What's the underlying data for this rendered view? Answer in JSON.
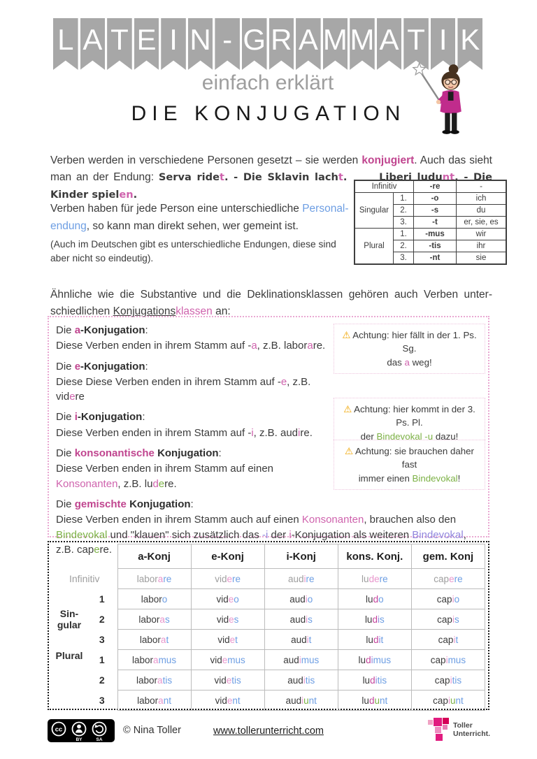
{
  "colors": {
    "pink_strong": "#c0458f",
    "pink": "#cf63ad",
    "pink_light": "#e896cc",
    "blue": "#6d9ee3",
    "green": "#7cb145",
    "violet": "#9186dd",
    "gray": "#9e9e9e",
    "banner_gray": "#a7a7a7",
    "warning_yellow": "#f0a500",
    "logo_magenta": "#e11c7f"
  },
  "header": {
    "banner_letters": [
      "L",
      "A",
      "T",
      "E",
      "I",
      "N",
      "-",
      "G",
      "R",
      "A",
      "M",
      "M",
      "A",
      "T",
      "I",
      "K"
    ],
    "subtitle": "einfach erklärt",
    "title": "DIE KONJUGATION"
  },
  "intro": {
    "segments": [
      [
        "Verben werden in verschiedene Personen gesetzt – sie werden ",
        ""
      ],
      [
        "konjugiert",
        "p"
      ],
      [
        ". Auch das sieht man an der Endung:  ",
        ""
      ],
      [
        "Serva ride",
        "hw"
      ],
      [
        "t",
        "hw pk"
      ],
      [
        ". - Die Sklavin lach",
        "hw"
      ],
      [
        "t",
        "hw pk"
      ],
      [
        ".",
        "hw"
      ],
      [
        "      ",
        "hw"
      ],
      [
        "Liberi ludu",
        "hw"
      ],
      [
        "nt",
        "hw pk"
      ],
      [
        ". - Die Kinder spiel",
        "hw"
      ],
      [
        "en",
        "hw pk"
      ],
      [
        ".",
        "hw"
      ]
    ]
  },
  "personal": {
    "segments": [
      [
        "Verben haben für jede Person eine unterschiedliche ",
        ""
      ],
      [
        "Personal-",
        "b"
      ],
      [
        "endung",
        "b"
      ],
      [
        ", so kann man direkt sehen, wer gemeint ist.",
        ""
      ]
    ],
    "note": "(Auch im Deutschen gibt es unterschiedliche Endungen, diese sind aber nicht so eindeutig)."
  },
  "endings_table": {
    "header_label": "Infinitiv",
    "header_ending": "-re",
    "header_pronoun": "-",
    "groups": [
      {
        "name": "Singular",
        "rows": [
          [
            "1.",
            "-o",
            "ich"
          ],
          [
            "2.",
            "-s",
            "du"
          ],
          [
            "3.",
            "-t",
            "er, sie, es"
          ]
        ]
      },
      {
        "name": "Plural",
        "rows": [
          [
            "1.",
            "-mus",
            "wir"
          ],
          [
            "2.",
            "-tis",
            "ihr"
          ],
          [
            "3.",
            "-nt",
            "sie"
          ]
        ]
      }
    ]
  },
  "klassen": {
    "segments": [
      [
        "Ähnliche wie die Substantive und die Deklinationsklassen gehören auch Verben unter-",
        ""
      ],
      [
        "schiedlichen ",
        ""
      ],
      [
        "Konjugations",
        "u"
      ],
      [
        "klassen",
        "pk"
      ],
      [
        " an:",
        ""
      ]
    ]
  },
  "box": {
    "entries": [
      {
        "title": [
          [
            "Die ",
            ""
          ],
          [
            "a",
            "p"
          ],
          [
            "-Konjugation",
            "bold"
          ],
          [
            ":",
            ""
          ]
        ],
        "body": [
          [
            "Diese Verben enden in ihrem Stamm auf -",
            ""
          ],
          [
            "a",
            "pk"
          ],
          [
            ", z.B. labor",
            ""
          ],
          [
            "a",
            "pk"
          ],
          [
            "re.",
            ""
          ]
        ]
      },
      {
        "title": [
          [
            "Die ",
            ""
          ],
          [
            "e",
            "p"
          ],
          [
            "-Konjugation",
            "bold"
          ],
          [
            ":",
            ""
          ]
        ],
        "body": [
          [
            "Diese Diese Verben enden in ihrem Stamm auf -",
            ""
          ],
          [
            "e",
            "pk"
          ],
          [
            ", z.B. vid",
            ""
          ],
          [
            "e",
            "pk"
          ],
          [
            "re",
            ""
          ]
        ]
      },
      {
        "title": [
          [
            "Die ",
            ""
          ],
          [
            "i",
            "p"
          ],
          [
            "-Konjugation",
            "bold"
          ],
          [
            ":",
            ""
          ]
        ],
        "body": [
          [
            "Diese Verben enden in ihrem Stamm auf -",
            ""
          ],
          [
            "i",
            "pk"
          ],
          [
            ", z.B. aud",
            ""
          ],
          [
            "i",
            "pk"
          ],
          [
            "re.",
            ""
          ]
        ]
      },
      {
        "title": [
          [
            "Die ",
            ""
          ],
          [
            "konsonantische",
            "p"
          ],
          [
            " ",
            ""
          ],
          [
            "Konjugation",
            "bold"
          ],
          [
            ":",
            ""
          ]
        ],
        "body": [
          [
            "Diese Verben enden in ihrem Stamm auf einen",
            ""
          ],
          [
            "\n",
            "br"
          ],
          [
            "Konsonanten",
            "pk"
          ],
          [
            ", z.B. lu",
            ""
          ],
          [
            "d",
            "pk"
          ],
          [
            "e",
            "g"
          ],
          [
            "re.",
            ""
          ]
        ]
      },
      {
        "title": [
          [
            "Die ",
            ""
          ],
          [
            "gemischte",
            "p"
          ],
          [
            " ",
            ""
          ],
          [
            "Konjugation",
            "bold"
          ],
          [
            ":",
            ""
          ]
        ],
        "body": [
          [
            "Diese Verben enden in ihrem Stamm auch auf einen ",
            ""
          ],
          [
            "Konsonanten",
            "pk"
          ],
          [
            ", brauchen also den ",
            ""
          ],
          [
            "Bindevokal",
            "g"
          ],
          [
            " und \"klauen\" sich zusätzlich das ",
            ""
          ],
          [
            "-i",
            "v"
          ],
          [
            " der ",
            ""
          ],
          [
            "i",
            "pk"
          ],
          [
            "-Konjugation als weiteren ",
            ""
          ],
          [
            "Bindevokal",
            "v"
          ],
          [
            ", z.B. cap",
            ""
          ],
          [
            "e",
            "g"
          ],
          [
            "re.",
            ""
          ]
        ]
      }
    ]
  },
  "warnings": [
    {
      "icon": "⚠",
      "segments": [
        [
          "Achtung: hier fällt in der 1. Ps. Sg.",
          ""
        ],
        [
          "\n",
          "br"
        ],
        [
          "das ",
          ""
        ],
        [
          "a",
          "pk"
        ],
        [
          " weg!",
          ""
        ]
      ]
    },
    {
      "icon": "⚠",
      "segments": [
        [
          "Achtung: hier kommt in der 3. Ps. Pl.",
          ""
        ],
        [
          "\n",
          "br"
        ],
        [
          "der ",
          ""
        ],
        [
          "Bindevokal -u",
          "g"
        ],
        [
          " dazu!",
          ""
        ]
      ]
    },
    {
      "icon": "⚠",
      "segments": [
        [
          "Achtung: sie brauchen daher fast",
          ""
        ],
        [
          "\n",
          "br"
        ],
        [
          "immer einen ",
          ""
        ],
        [
          "Bindevokal",
          "g"
        ],
        [
          "!",
          ""
        ]
      ]
    }
  ],
  "table": {
    "col_headers": [
      "a-Konj",
      "e-Konj",
      "i-Konj",
      "kons. Konj.",
      "gem. Konj"
    ],
    "group_singular": "Sin-\ngular",
    "group_plural": "Plural",
    "rows": [
      {
        "label": "Infinitiv",
        "cells": [
          [
            [
              "labor",
              "gr"
            ],
            [
              "a",
              "pl"
            ],
            [
              "re",
              "b"
            ]
          ],
          [
            [
              "vid",
              "gr"
            ],
            [
              "e",
              "pl"
            ],
            [
              "re",
              "b"
            ]
          ],
          [
            [
              "aud",
              "gr"
            ],
            [
              "i",
              "pl"
            ],
            [
              "re",
              "b"
            ]
          ],
          [
            [
              "lu",
              "gr"
            ],
            [
              "d",
              "pl"
            ],
            [
              "e",
              "pl"
            ],
            [
              "re",
              "b"
            ]
          ],
          [
            [
              "cap",
              "gr"
            ],
            [
              "e",
              "pl"
            ],
            [
              "re",
              "b"
            ]
          ]
        ]
      },
      {
        "label": "1",
        "cells": [
          [
            [
              "labor",
              ""
            ],
            [
              "o",
              "b"
            ]
          ],
          [
            [
              "vid",
              ""
            ],
            [
              "e",
              "pl"
            ],
            [
              "o",
              "b"
            ]
          ],
          [
            [
              "aud",
              ""
            ],
            [
              "i",
              "pl"
            ],
            [
              "o",
              "b"
            ]
          ],
          [
            [
              "lu",
              ""
            ],
            [
              "d",
              "m"
            ],
            [
              "o",
              "b"
            ]
          ],
          [
            [
              "cap",
              ""
            ],
            [
              "i",
              "pl"
            ],
            [
              "o",
              "b"
            ]
          ]
        ]
      },
      {
        "label": "2",
        "cells": [
          [
            [
              "labor",
              ""
            ],
            [
              "a",
              "pl"
            ],
            [
              "s",
              "b"
            ]
          ],
          [
            [
              "vid",
              ""
            ],
            [
              "e",
              "pl"
            ],
            [
              "s",
              "b"
            ]
          ],
          [
            [
              "aud",
              ""
            ],
            [
              "i",
              "pl"
            ],
            [
              "s",
              "b"
            ]
          ],
          [
            [
              "lu",
              ""
            ],
            [
              "d",
              "m"
            ],
            [
              "i",
              "v"
            ],
            [
              "s",
              "b"
            ]
          ],
          [
            [
              "cap",
              ""
            ],
            [
              "i",
              "pl"
            ],
            [
              "s",
              "b"
            ]
          ]
        ]
      },
      {
        "label": "3",
        "cells": [
          [
            [
              "labor",
              ""
            ],
            [
              "a",
              "pl"
            ],
            [
              "t",
              "b"
            ]
          ],
          [
            [
              "vid",
              ""
            ],
            [
              "e",
              "pl"
            ],
            [
              "t",
              "b"
            ]
          ],
          [
            [
              "aud",
              ""
            ],
            [
              "i",
              "pl"
            ],
            [
              "t",
              "b"
            ]
          ],
          [
            [
              "lu",
              ""
            ],
            [
              "d",
              "m"
            ],
            [
              "i",
              "v"
            ],
            [
              "t",
              "b"
            ]
          ],
          [
            [
              "cap",
              ""
            ],
            [
              "i",
              "pl"
            ],
            [
              "t",
              "b"
            ]
          ]
        ]
      },
      {
        "label": "1",
        "cells": [
          [
            [
              "labor",
              ""
            ],
            [
              "a",
              "pl"
            ],
            [
              "mus",
              "b"
            ]
          ],
          [
            [
              "vid",
              ""
            ],
            [
              "e",
              "pl"
            ],
            [
              "mus",
              "b"
            ]
          ],
          [
            [
              "aud",
              ""
            ],
            [
              "i",
              "pl"
            ],
            [
              "mus",
              "b"
            ]
          ],
          [
            [
              "lu",
              ""
            ],
            [
              "d",
              "m"
            ],
            [
              "i",
              "v"
            ],
            [
              "mus",
              "b"
            ]
          ],
          [
            [
              "cap",
              ""
            ],
            [
              "i",
              "pl"
            ],
            [
              "mus",
              "b"
            ]
          ]
        ]
      },
      {
        "label": "2",
        "cells": [
          [
            [
              "labor",
              ""
            ],
            [
              "a",
              "pl"
            ],
            [
              "tis",
              "b"
            ]
          ],
          [
            [
              "vid",
              ""
            ],
            [
              "e",
              "pl"
            ],
            [
              "tis",
              "b"
            ]
          ],
          [
            [
              "aud",
              ""
            ],
            [
              "i",
              "pl"
            ],
            [
              "tis",
              "b"
            ]
          ],
          [
            [
              "lu",
              ""
            ],
            [
              "d",
              "m"
            ],
            [
              "i",
              "v"
            ],
            [
              "tis",
              "b"
            ]
          ],
          [
            [
              "cap",
              ""
            ],
            [
              "i",
              "pl"
            ],
            [
              "tis",
              "b"
            ]
          ]
        ]
      },
      {
        "label": "3",
        "cells": [
          [
            [
              "labor",
              ""
            ],
            [
              "a",
              "pl"
            ],
            [
              "nt",
              "b"
            ]
          ],
          [
            [
              "vid",
              ""
            ],
            [
              "e",
              "pl"
            ],
            [
              "nt",
              "b"
            ]
          ],
          [
            [
              "aud",
              ""
            ],
            [
              "i",
              "pl"
            ],
            [
              "u",
              "g"
            ],
            [
              "nt",
              "b"
            ]
          ],
          [
            [
              "lu",
              ""
            ],
            [
              "d",
              "m"
            ],
            [
              "u",
              "g"
            ],
            [
              "nt",
              "b"
            ]
          ],
          [
            [
              "cap",
              ""
            ],
            [
              "i",
              "pl"
            ],
            [
              "u",
              "g"
            ],
            [
              "nt",
              "b"
            ]
          ]
        ]
      }
    ]
  },
  "footer": {
    "license_cc": "cc",
    "license_by": "BY",
    "license_sa": "SA",
    "copyright": "© Nina Toller",
    "website": "www.tollerunterricht.com",
    "logo_line1": "Toller",
    "logo_line2": "Unterricht."
  }
}
